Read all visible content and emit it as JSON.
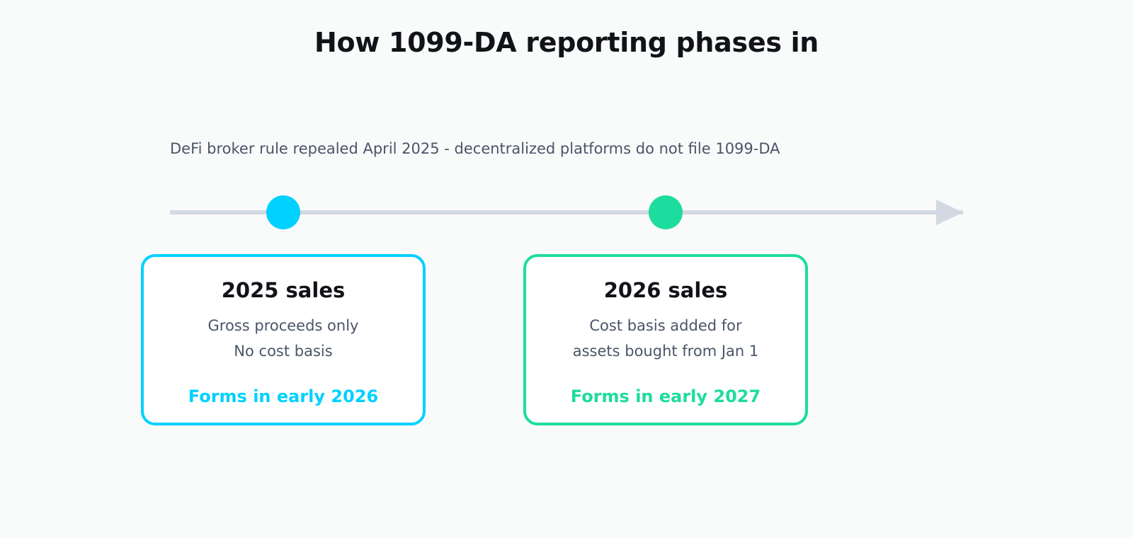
{
  "title": "How 1099-DA reporting phases in",
  "note": "DeFi broker rule repealed April 2025 - decentralized platforms do not file 1099-DA",
  "colors": {
    "track": "#d3d9e2",
    "phase_2025": "#00d1ff",
    "phase_2026": "#1ddc9e"
  },
  "phases": [
    {
      "title": "2025 sales",
      "line1": "Gross proceeds only",
      "line2": "No cost basis",
      "forms": "Forms in early 2026",
      "color": "#00d1ff"
    },
    {
      "title": "2026 sales",
      "line1": "Cost basis added for",
      "line2": "assets bought from Jan 1",
      "forms": "Forms in early 2027",
      "color": "#1ddc9e"
    }
  ]
}
